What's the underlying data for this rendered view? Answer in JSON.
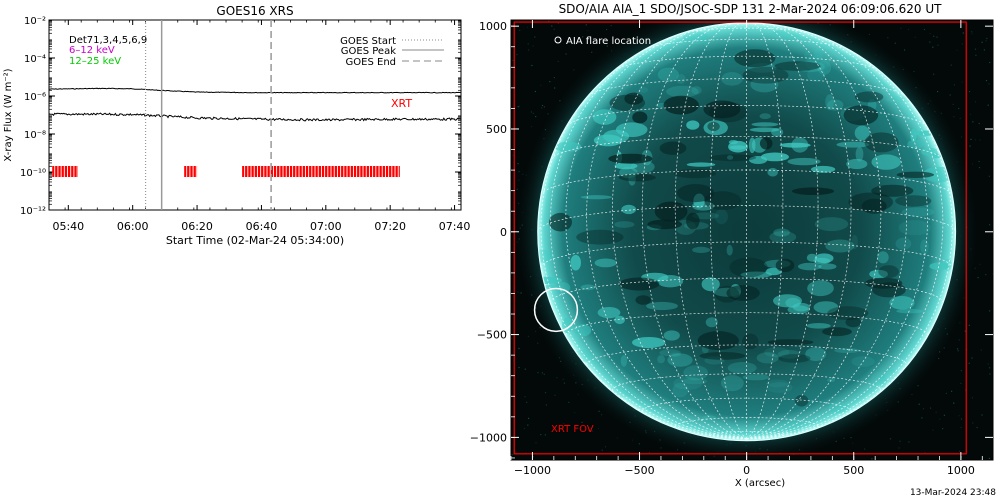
{
  "footer": {
    "stamp": "13-Mar-2024 23:48"
  },
  "chart_data": [
    {
      "type": "line",
      "title": "GOES16 XRS",
      "xlabel": "Start Time (02-Mar-24 05:34:00)",
      "ylabel": "X-ray Flux (W m⁻²)",
      "yscale": "log",
      "ylim": [
        1e-12,
        0.01
      ],
      "xlim": [
        "05:34",
        "07:42"
      ],
      "x_ticks": [
        "05:40",
        "06:00",
        "06:20",
        "06:40",
        "07:00",
        "07:20",
        "07:40"
      ],
      "y_ticks": [
        {
          "value": 1e-12,
          "label": "10⁻¹²"
        },
        {
          "value": 1e-10,
          "label": "10⁻¹⁰"
        },
        {
          "value": 1e-08,
          "label": "10⁻⁸"
        },
        {
          "value": 1e-06,
          "label": "10⁻⁶"
        },
        {
          "value": 0.0001,
          "label": "10⁻⁴"
        },
        {
          "value": 0.01,
          "label": "10⁻²"
        }
      ],
      "channel_labels": [
        {
          "text": "Det71,3,4,5,6,9",
          "color": "#000000"
        },
        {
          "text": "6–12 keV",
          "color": "#cc00cc"
        },
        {
          "text": "12–25 keV",
          "color": "#00cc00"
        }
      ],
      "legend": {
        "position": "top-right",
        "entries": [
          {
            "name": "GOES Start",
            "style": "dotted",
            "time": "06:04"
          },
          {
            "name": "GOES Peak",
            "style": "solid",
            "time": "06:09"
          },
          {
            "name": "GOES End",
            "style": "dashed",
            "time": "06:43"
          }
        ]
      },
      "series": [
        {
          "name": "",
          "color": "#000000",
          "x": [
            "05:34",
            "05:50",
            "06:00",
            "06:08",
            "06:20",
            "06:40",
            "07:00",
            "07:20",
            "07:42"
          ],
          "y": [
            2.3e-06,
            2.5e-06,
            2.4e-06,
            2e-06,
            1.6e-06,
            1.5e-06,
            1.5e-06,
            1.5e-06,
            1.5e-06
          ]
        },
        {
          "name": "",
          "color": "#000000",
          "x": [
            "05:34",
            "05:50",
            "06:00",
            "06:08",
            "06:20",
            "06:40",
            "07:00",
            "07:20",
            "07:42"
          ],
          "y": [
            1.1e-07,
            1.1e-07,
            1.05e-07,
            9e-08,
            7e-08,
            6e-08,
            5.5e-08,
            6e-08,
            6e-08
          ]
        }
      ],
      "xrt": {
        "label": "XRT",
        "color": "#ff0000",
        "flux_level": 1e-10,
        "intervals": [
          [
            "05:35",
            "05:43"
          ],
          [
            "06:16",
            "06:20"
          ],
          [
            "06:34",
            "07:23"
          ]
        ]
      }
    },
    {
      "type": "image",
      "title": "SDO/AIA AIA_1 SDO/JSOC-SDP 131  2-Mar-2024 06:09:06.620 UT",
      "xlabel": "X (arcsec)",
      "ylabel": "",
      "xlim": [
        -1100,
        1150
      ],
      "ylim": [
        -1110,
        1030
      ],
      "x_ticks": [
        -1000,
        -500,
        0,
        500,
        1000
      ],
      "y_ticks": [
        -1000,
        -500,
        0,
        500,
        1000
      ],
      "legend_text": "AIA flare location",
      "fov_label": "XRT FOV",
      "fov_color": "#ff0000",
      "fov": {
        "x": [
          -1085,
          1025
        ],
        "y": [
          -1080,
          1020
        ]
      },
      "sun_radius": 975,
      "flare_location": {
        "x": -890,
        "y": -380,
        "radius": 100
      }
    }
  ]
}
